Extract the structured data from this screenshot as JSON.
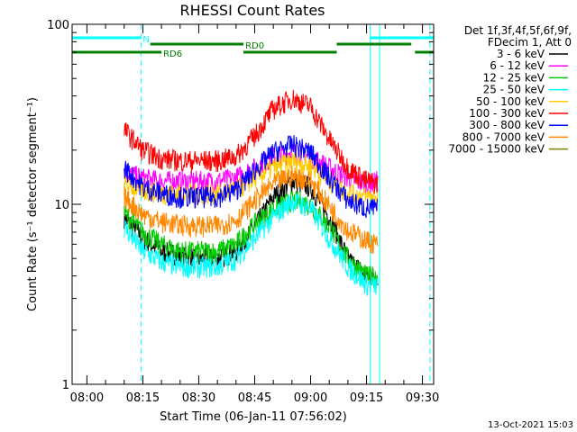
{
  "chart_data": {
    "type": "line",
    "title": "RHESSI Count Rates",
    "xlabel": "Start Time (06-Jan-11 07:56:02)",
    "ylabel": "Count Rate (s⁻¹ detector segment⁻¹)",
    "y_scale": "log",
    "ylim": [
      1,
      100
    ],
    "y_ticks": [
      1,
      10,
      100
    ],
    "y_tick_labels": [
      "1",
      "10",
      "100"
    ],
    "xlim": [
      "07:56:02",
      "09:33:00"
    ],
    "x_ticks": [
      "08:00",
      "08:15",
      "08:30",
      "08:45",
      "09:00",
      "09:15",
      "09:30"
    ],
    "grid": false,
    "legend_placement": "right",
    "legend_header": [
      "Det 1f,3f,4f,5f,6f,9f,",
      "FDecim 1, Att 0"
    ],
    "timestamp": "13-Oct-2021 15:03",
    "series": [
      {
        "name": "3 - 6 keV",
        "color": "#000000",
        "x": [
          "08:10",
          "08:15",
          "08:20",
          "08:25",
          "08:30",
          "08:35",
          "08:40",
          "08:45",
          "08:50",
          "08:55",
          "09:00",
          "09:05",
          "09:10",
          "09:15",
          "09:18"
        ],
        "values": [
          8.5,
          6.5,
          5.5,
          5.2,
          5.0,
          5.0,
          5.5,
          7.5,
          11.0,
          13.5,
          12.5,
          8.5,
          5.0,
          4.0,
          4.0
        ]
      },
      {
        "name": "6 - 12 keV",
        "color": "#ff00ff",
        "x": [
          "08:10",
          "08:15",
          "08:20",
          "08:25",
          "08:30",
          "08:35",
          "08:40",
          "08:45",
          "08:50",
          "08:55",
          "09:00",
          "09:05",
          "09:10",
          "09:15",
          "09:18"
        ],
        "values": [
          15.0,
          14.0,
          13.5,
          13.5,
          13.5,
          13.5,
          14.0,
          16.0,
          18.5,
          19.5,
          18.5,
          16.0,
          14.0,
          13.0,
          13.5
        ]
      },
      {
        "name": "12 - 25 keV",
        "color": "#00cc00",
        "x": [
          "08:10",
          "08:15",
          "08:20",
          "08:25",
          "08:30",
          "08:35",
          "08:40",
          "08:45",
          "08:50",
          "08:55",
          "09:00",
          "09:05",
          "09:10",
          "09:15",
          "09:18"
        ],
        "values": [
          9.0,
          7.0,
          6.0,
          5.5,
          5.5,
          5.5,
          6.0,
          7.8,
          9.5,
          10.5,
          10.0,
          7.5,
          5.0,
          4.0,
          4.0
        ]
      },
      {
        "name": "25 - 50 keV",
        "color": "#00ffff",
        "x": [
          "08:10",
          "08:15",
          "08:20",
          "08:25",
          "08:30",
          "08:35",
          "08:40",
          "08:45",
          "08:50",
          "08:55",
          "09:00",
          "09:05",
          "09:10",
          "09:15",
          "09:18"
        ],
        "values": [
          7.5,
          5.5,
          4.8,
          4.5,
          4.5,
          4.5,
          5.0,
          6.5,
          8.5,
          10.5,
          9.5,
          6.5,
          4.5,
          3.6,
          3.5
        ]
      },
      {
        "name": "50 - 100 keV",
        "color": "#ffcc00",
        "x": [
          "08:10",
          "08:15",
          "08:20",
          "08:25",
          "08:30",
          "08:35",
          "08:40",
          "08:45",
          "08:50",
          "08:55",
          "09:00",
          "09:05",
          "09:10",
          "09:15",
          "09:18"
        ],
        "values": [
          13.0,
          12.0,
          11.5,
          11.5,
          11.5,
          11.5,
          12.0,
          14.0,
          16.0,
          17.5,
          16.5,
          13.5,
          11.5,
          11.0,
          11.0
        ]
      },
      {
        "name": "100 - 300 keV",
        "color": "#ff0000",
        "x": [
          "08:10",
          "08:15",
          "08:20",
          "08:25",
          "08:30",
          "08:35",
          "08:40",
          "08:45",
          "08:50",
          "08:55",
          "09:00",
          "09:05",
          "09:10",
          "09:15",
          "09:18"
        ],
        "values": [
          26.0,
          20.0,
          18.0,
          17.5,
          17.5,
          17.5,
          18.5,
          24.0,
          34.0,
          39.0,
          35.0,
          23.0,
          16.0,
          13.5,
          13.0
        ]
      },
      {
        "name": "300 - 800 keV",
        "color": "#0000ff",
        "x": [
          "08:10",
          "08:15",
          "08:20",
          "08:25",
          "08:30",
          "08:35",
          "08:40",
          "08:45",
          "08:50",
          "08:55",
          "09:00",
          "09:05",
          "09:10",
          "09:15",
          "09:18"
        ],
        "values": [
          16.0,
          12.5,
          11.5,
          11.0,
          11.0,
          11.0,
          12.0,
          15.5,
          19.5,
          21.5,
          19.5,
          14.0,
          10.5,
          9.5,
          9.5
        ]
      },
      {
        "name": "800 - 7000 keV",
        "color": "#ff8800",
        "x": [
          "08:10",
          "08:15",
          "08:20",
          "08:25",
          "08:30",
          "08:35",
          "08:40",
          "08:45",
          "08:50",
          "08:55",
          "09:00",
          "09:05",
          "09:10",
          "09:15",
          "09:18"
        ],
        "values": [
          11.0,
          8.8,
          8.0,
          7.7,
          7.6,
          7.6,
          8.2,
          10.5,
          13.0,
          14.5,
          13.5,
          9.8,
          7.2,
          6.3,
          6.0
        ]
      },
      {
        "name": "7000 - 15000 keV",
        "color": "#808000",
        "x": [],
        "values": []
      }
    ],
    "attenuator_bars": [
      {
        "label": "N",
        "color": "#00ffff",
        "intervals": [
          [
            "07:56:02",
            "08:14:30"
          ],
          [
            "09:16:00",
            "09:33:00"
          ]
        ]
      },
      {
        "label": "RD0",
        "color": "#008000",
        "intervals": [
          [
            "08:17:00",
            "08:42:00"
          ],
          [
            "09:07:00",
            "09:27:00"
          ]
        ]
      },
      {
        "label": "RD6",
        "color": "#008000",
        "intervals": [
          [
            "07:56:02",
            "08:20:00"
          ],
          [
            "08:42:00",
            "09:07:00"
          ],
          [
            "09:28:00",
            "09:33:00"
          ]
        ]
      }
    ],
    "vertical_lines": [
      {
        "time": "07:56:02",
        "color": "#00ffff",
        "style": "solid"
      },
      {
        "time": "08:14:30",
        "color": "#00ffff",
        "style": "dashed"
      },
      {
        "time": "09:16:00",
        "color": "#00ffff",
        "style": "solid"
      },
      {
        "time": "09:18:30",
        "color": "#00ffff",
        "style": "solid"
      },
      {
        "time": "09:32:00",
        "color": "#00ffff",
        "style": "dashed"
      }
    ]
  }
}
